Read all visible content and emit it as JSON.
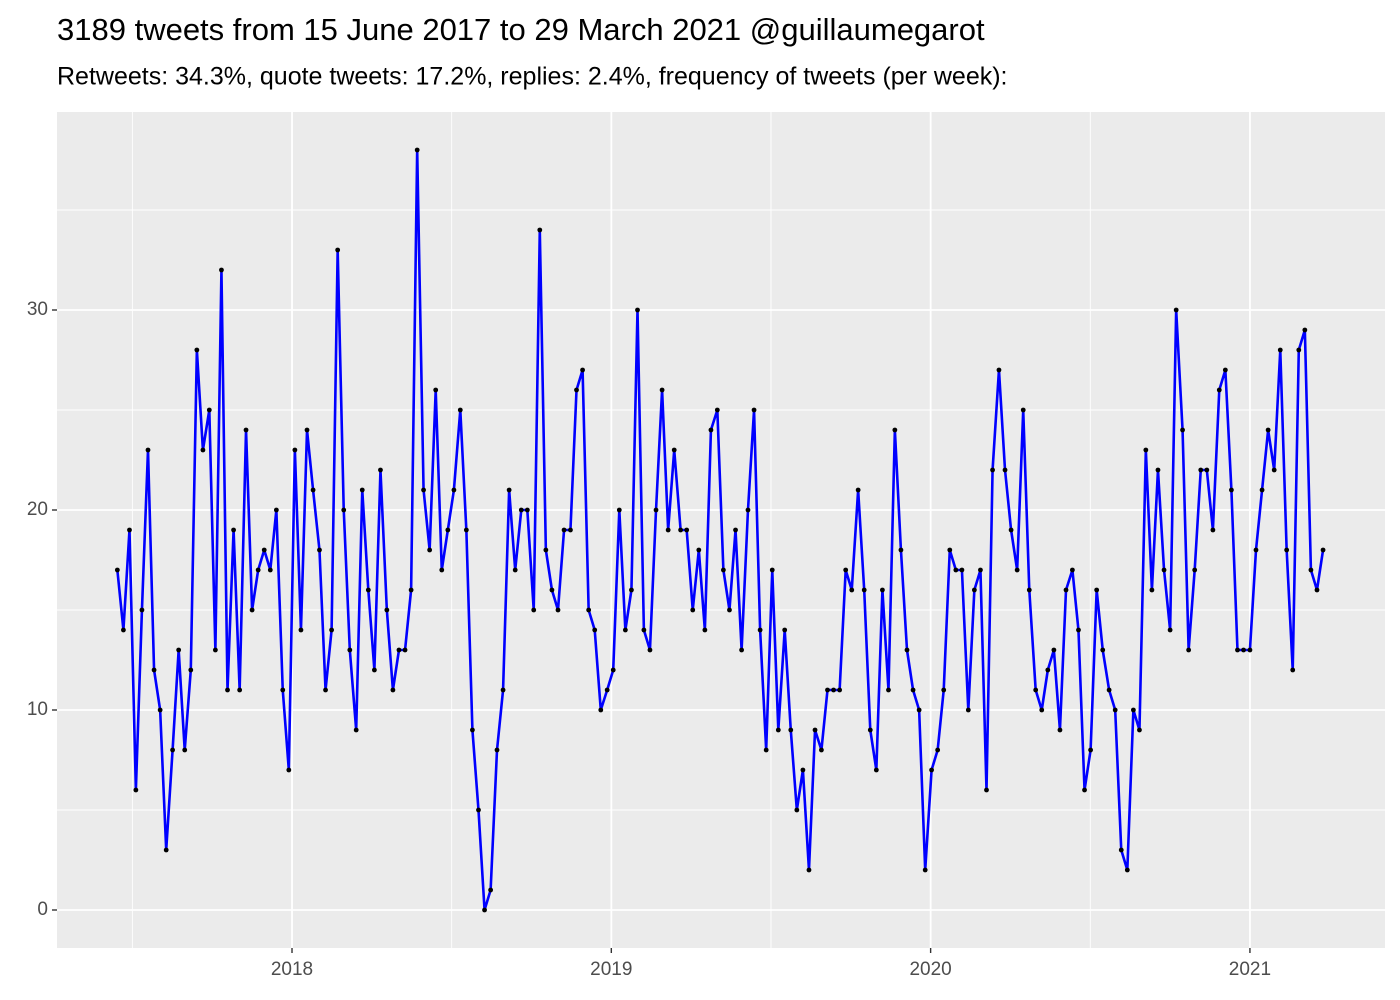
{
  "chart_data": {
    "type": "line",
    "title": "3189 tweets from 15 June 2017 to 29 March 2021 @guillaumegarot",
    "subtitle": "Retweets: 34.3%, quote tweets: 17.2%, replies: 2.4%, frequency of tweets (per week):",
    "color": "#0000ff",
    "point_color": "#000000",
    "grid": true,
    "x": [
      2017.453,
      2017.472,
      2017.491,
      2017.511,
      2017.53,
      2017.549,
      2017.568,
      2017.587,
      2017.606,
      2017.626,
      2017.645,
      2017.664,
      2017.683,
      2017.702,
      2017.721,
      2017.741,
      2017.76,
      2017.779,
      2017.798,
      2017.817,
      2017.836,
      2017.856,
      2017.875,
      2017.894,
      2017.913,
      2017.932,
      2017.951,
      2017.971,
      2017.99,
      2018.009,
      2018.028,
      2018.047,
      2018.066,
      2018.086,
      2018.105,
      2018.124,
      2018.143,
      2018.162,
      2018.181,
      2018.201,
      2018.22,
      2018.239,
      2018.258,
      2018.277,
      2018.297,
      2018.316,
      2018.335,
      2018.354,
      2018.373,
      2018.392,
      2018.412,
      2018.431,
      2018.45,
      2018.469,
      2018.488,
      2018.507,
      2018.527,
      2018.546,
      2018.565,
      2018.584,
      2018.603,
      2018.622,
      2018.642,
      2018.661,
      2018.68,
      2018.699,
      2018.718,
      2018.737,
      2018.757,
      2018.776,
      2018.795,
      2018.814,
      2018.833,
      2018.852,
      2018.872,
      2018.891,
      2018.91,
      2018.929,
      2018.948,
      2018.967,
      2018.987,
      2019.006,
      2019.025,
      2019.044,
      2019.063,
      2019.082,
      2019.102,
      2019.121,
      2019.14,
      2019.159,
      2019.178,
      2019.197,
      2019.217,
      2019.236,
      2019.255,
      2019.274,
      2019.293,
      2019.312,
      2019.332,
      2019.351,
      2019.37,
      2019.389,
      2019.408,
      2019.428,
      2019.447,
      2019.466,
      2019.485,
      2019.504,
      2019.523,
      2019.543,
      2019.562,
      2019.581,
      2019.6,
      2019.619,
      2019.638,
      2019.658,
      2019.677,
      2019.696,
      2019.715,
      2019.734,
      2019.753,
      2019.773,
      2019.792,
      2019.811,
      2019.83,
      2019.849,
      2019.868,
      2019.888,
      2019.907,
      2019.926,
      2019.945,
      2019.964,
      2019.983,
      2020.003,
      2020.022,
      2020.041,
      2020.06,
      2020.079,
      2020.098,
      2020.118,
      2020.137,
      2020.156,
      2020.175,
      2020.194,
      2020.214,
      2020.233,
      2020.252,
      2020.271,
      2020.29,
      2020.309,
      2020.329,
      2020.348,
      2020.367,
      2020.386,
      2020.405,
      2020.424,
      2020.444,
      2020.463,
      2020.482,
      2020.501,
      2020.52,
      2020.539,
      2020.559,
      2020.578,
      2020.597,
      2020.616,
      2020.635,
      2020.654,
      2020.674,
      2020.693,
      2020.712,
      2020.731,
      2020.75,
      2020.769,
      2020.789,
      2020.808,
      2020.827,
      2020.846,
      2020.865,
      2020.884,
      2020.904,
      2020.923,
      2020.942,
      2020.961,
      2020.98,
      2021.0,
      2021.019,
      2021.038,
      2021.057,
      2021.076,
      2021.095,
      2021.115,
      2021.134,
      2021.153,
      2021.172,
      2021.191,
      2021.21,
      2021.229
    ],
    "values": [
      17,
      14,
      19,
      6,
      15,
      23,
      12,
      10,
      3,
      8,
      13,
      8,
      12,
      28,
      23,
      25,
      13,
      32,
      11,
      19,
      11,
      24,
      15,
      17,
      18,
      17,
      20,
      11,
      7,
      23,
      14,
      24,
      21,
      18,
      11,
      14,
      33,
      20,
      13,
      9,
      21,
      16,
      12,
      22,
      15,
      11,
      13,
      13,
      16,
      38,
      21,
      18,
      26,
      17,
      19,
      21,
      25,
      19,
      9,
      5,
      0,
      1,
      8,
      11,
      21,
      17,
      20,
      20,
      15,
      34,
      18,
      16,
      15,
      19,
      19,
      26,
      27,
      15,
      14,
      10,
      11,
      12,
      20,
      14,
      16,
      30,
      14,
      13,
      20,
      26,
      19,
      23,
      19,
      19,
      15,
      18,
      14,
      24,
      25,
      17,
      15,
      19,
      13,
      20,
      25,
      14,
      8,
      17,
      9,
      14,
      9,
      5,
      7,
      2,
      9,
      8,
      11,
      11,
      11,
      17,
      16,
      21,
      16,
      9,
      7,
      16,
      11,
      24,
      18,
      13,
      11,
      10,
      2,
      7,
      8,
      11,
      18,
      17,
      17,
      10,
      16,
      17,
      6,
      22,
      27,
      22,
      19,
      17,
      25,
      16,
      11,
      10,
      12,
      13,
      9,
      16,
      17,
      14,
      6,
      8,
      16,
      13,
      11,
      10,
      3,
      2,
      10,
      9,
      23,
      16,
      22,
      17,
      14,
      30,
      24,
      13,
      17,
      22,
      22,
      19,
      26,
      27,
      21,
      13,
      13,
      13,
      18,
      21,
      24,
      22,
      28,
      18,
      12,
      28,
      29,
      17,
      16,
      18
    ],
    "xlim": [
      2017.264,
      2021.423
    ],
    "ylim": [
      -1.9,
      39.9
    ],
    "xticks": [
      2018,
      2019,
      2020,
      2021
    ],
    "yticks": [
      0,
      10,
      20,
      30
    ],
    "minor_xticks": [
      2017.5,
      2018.5,
      2019.5,
      2020.5
    ],
    "minor_yticks": [
      5,
      15,
      25,
      35
    ]
  }
}
